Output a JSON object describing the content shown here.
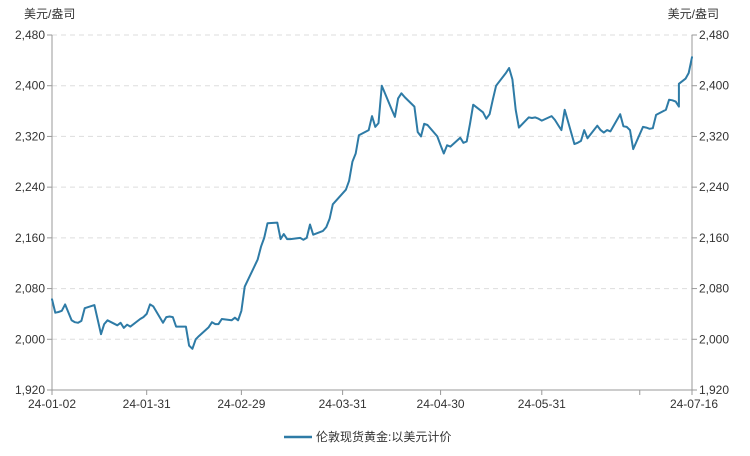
{
  "chart_data": {
    "type": "line",
    "title": "",
    "ylabel_left": "美元/盎司",
    "ylabel_right": "美元/盎司",
    "ylim": [
      1920,
      2480
    ],
    "yticks": [
      1920,
      2000,
      2080,
      2160,
      2240,
      2320,
      2400,
      2480
    ],
    "ytick_labels": [
      "1,920",
      "2,000",
      "2,080",
      "2,160",
      "2,240",
      "2,320",
      "2,400",
      "2,480"
    ],
    "xlim": [
      "2024-01-02",
      "2024-07-16"
    ],
    "xticks": [
      "2024-01-02",
      "2024-01-31",
      "2024-02-29",
      "2024-03-31",
      "2024-04-30",
      "2024-05-31",
      "2024-07-16"
    ],
    "xtick_labels": [
      "24-01-02",
      "24-01-31",
      "24-02-29",
      "24-03-31",
      "24-04-30",
      "24-05-31",
      "24-07-16"
    ],
    "grid": "horizontal dashed",
    "legend": "bottom-center",
    "colors": {
      "series": "#2e7ba6",
      "axis": "#999999",
      "grid": "#dddddd"
    },
    "series": [
      {
        "name": "伦敦现货黄金:以美元计价",
        "points": [
          [
            "2024-01-02",
            2063
          ],
          [
            "2024-01-03",
            2042
          ],
          [
            "2024-01-04",
            2043
          ],
          [
            "2024-01-05",
            2045
          ],
          [
            "2024-01-06",
            2055
          ],
          [
            "2024-01-08",
            2030
          ],
          [
            "2024-01-09",
            2027
          ],
          [
            "2024-01-10",
            2026
          ],
          [
            "2024-01-11",
            2029
          ],
          [
            "2024-01-12",
            2049
          ],
          [
            "2024-01-15",
            2054
          ],
          [
            "2024-01-16",
            2031
          ],
          [
            "2024-01-17",
            2008
          ],
          [
            "2024-01-18",
            2024
          ],
          [
            "2024-01-19",
            2030
          ],
          [
            "2024-01-22",
            2022
          ],
          [
            "2024-01-23",
            2026
          ],
          [
            "2024-01-24",
            2018
          ],
          [
            "2024-01-25",
            2023
          ],
          [
            "2024-01-26",
            2020
          ],
          [
            "2024-01-29",
            2032
          ],
          [
            "2024-01-30",
            2035
          ],
          [
            "2024-01-31",
            2040
          ],
          [
            "2024-02-01",
            2055
          ],
          [
            "2024-02-02",
            2052
          ],
          [
            "2024-02-05",
            2026
          ],
          [
            "2024-02-06",
            2035
          ],
          [
            "2024-02-07",
            2036
          ],
          [
            "2024-02-08",
            2035
          ],
          [
            "2024-02-09",
            2020
          ],
          [
            "2024-02-12",
            2020
          ],
          [
            "2024-02-13",
            1990
          ],
          [
            "2024-02-14",
            1985
          ],
          [
            "2024-02-15",
            2000
          ],
          [
            "2024-02-16",
            2005
          ],
          [
            "2024-02-19",
            2019
          ],
          [
            "2024-02-20",
            2027
          ],
          [
            "2024-02-21",
            2024
          ],
          [
            "2024-02-22",
            2024
          ],
          [
            "2024-02-23",
            2032
          ],
          [
            "2024-02-26",
            2030
          ],
          [
            "2024-02-27",
            2034
          ],
          [
            "2024-02-28",
            2030
          ],
          [
            "2024-02-29",
            2045
          ],
          [
            "2024-03-01",
            2083
          ],
          [
            "2024-03-04",
            2115
          ],
          [
            "2024-03-05",
            2126
          ],
          [
            "2024-03-06",
            2146
          ],
          [
            "2024-03-07",
            2160
          ],
          [
            "2024-03-08",
            2183
          ],
          [
            "2024-03-11",
            2184
          ],
          [
            "2024-03-12",
            2158
          ],
          [
            "2024-03-13",
            2166
          ],
          [
            "2024-03-14",
            2158
          ],
          [
            "2024-03-15",
            2158
          ],
          [
            "2024-03-18",
            2160
          ],
          [
            "2024-03-19",
            2157
          ],
          [
            "2024-03-20",
            2160
          ],
          [
            "2024-03-21",
            2181
          ],
          [
            "2024-03-22",
            2165
          ],
          [
            "2024-03-25",
            2171
          ],
          [
            "2024-03-26",
            2177
          ],
          [
            "2024-03-27",
            2190
          ],
          [
            "2024-03-28",
            2213
          ],
          [
            "2024-04-01",
            2236
          ],
          [
            "2024-04-02",
            2250
          ],
          [
            "2024-04-03",
            2280
          ],
          [
            "2024-04-04",
            2293
          ],
          [
            "2024-04-05",
            2322
          ],
          [
            "2024-04-08",
            2330
          ],
          [
            "2024-04-09",
            2352
          ],
          [
            "2024-04-10",
            2335
          ],
          [
            "2024-04-11",
            2341
          ],
          [
            "2024-04-12",
            2400
          ],
          [
            "2024-04-15",
            2363
          ],
          [
            "2024-04-16",
            2351
          ],
          [
            "2024-04-17",
            2380
          ],
          [
            "2024-04-18",
            2388
          ],
          [
            "2024-04-19",
            2382
          ],
          [
            "2024-04-22",
            2367
          ],
          [
            "2024-04-23",
            2327
          ],
          [
            "2024-04-24",
            2320
          ],
          [
            "2024-04-25",
            2340
          ],
          [
            "2024-04-26",
            2338
          ],
          [
            "2024-04-29",
            2320
          ],
          [
            "2024-04-30",
            2306
          ],
          [
            "2024-05-01",
            2293
          ],
          [
            "2024-05-02",
            2306
          ],
          [
            "2024-05-03",
            2304
          ],
          [
            "2024-05-06",
            2318
          ],
          [
            "2024-05-07",
            2310
          ],
          [
            "2024-05-08",
            2312
          ],
          [
            "2024-05-09",
            2340
          ],
          [
            "2024-05-10",
            2370
          ],
          [
            "2024-05-13",
            2358
          ],
          [
            "2024-05-14",
            2348
          ],
          [
            "2024-05-15",
            2355
          ],
          [
            "2024-05-16",
            2378
          ],
          [
            "2024-05-17",
            2400
          ],
          [
            "2024-05-20",
            2420
          ],
          [
            "2024-05-21",
            2428
          ],
          [
            "2024-05-22",
            2410
          ],
          [
            "2024-05-23",
            2362
          ],
          [
            "2024-05-24",
            2334
          ],
          [
            "2024-05-27",
            2350
          ],
          [
            "2024-05-28",
            2349
          ],
          [
            "2024-05-29",
            2350
          ],
          [
            "2024-05-30",
            2348
          ],
          [
            "2024-05-31",
            2345
          ],
          [
            "2024-06-03",
            2352
          ],
          [
            "2024-06-04",
            2346
          ],
          [
            "2024-06-05",
            2338
          ],
          [
            "2024-06-06",
            2330
          ],
          [
            "2024-06-07",
            2362
          ],
          [
            "2024-06-10",
            2308
          ],
          [
            "2024-06-11",
            2310
          ],
          [
            "2024-06-12",
            2313
          ],
          [
            "2024-06-13",
            2330
          ],
          [
            "2024-06-14",
            2317
          ],
          [
            "2024-06-17",
            2337
          ],
          [
            "2024-06-18",
            2330
          ],
          [
            "2024-06-19",
            2326
          ],
          [
            "2024-06-20",
            2330
          ],
          [
            "2024-06-21",
            2328
          ],
          [
            "2024-06-24",
            2355
          ],
          [
            "2024-06-25",
            2336
          ],
          [
            "2024-06-26",
            2335
          ],
          [
            "2024-06-27",
            2330
          ],
          [
            "2024-06-28",
            2300
          ],
          [
            "2024-07-01",
            2335
          ],
          [
            "2024-07-02",
            2334
          ],
          [
            "2024-07-03",
            2332
          ],
          [
            "2024-07-04",
            2333
          ],
          [
            "2024-07-05",
            2354
          ],
          [
            "2024-07-08",
            2362
          ],
          [
            "2024-07-09",
            2378
          ],
          [
            "2024-07-10",
            2377
          ],
          [
            "2024-07-11",
            2375
          ],
          [
            "2024-07-12",
            2367
          ],
          [
            "2024-07-12",
            2403
          ],
          [
            "2024-07-14",
            2411
          ],
          [
            "2024-07-15",
            2420
          ],
          [
            "2024-07-16",
            2445
          ]
        ]
      }
    ]
  }
}
